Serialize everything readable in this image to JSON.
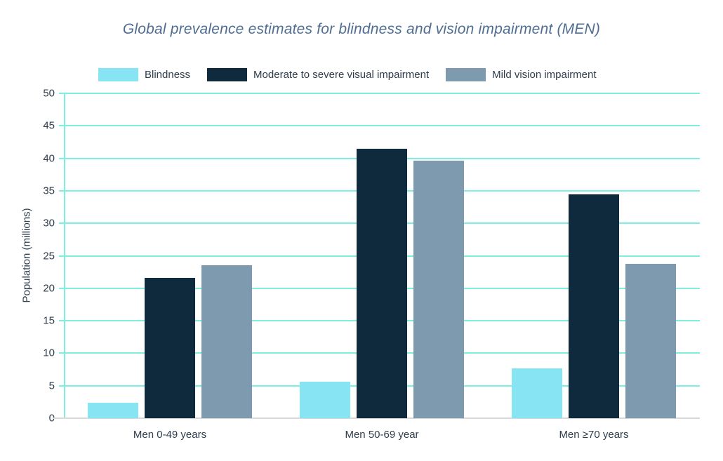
{
  "chart_data": {
    "type": "bar",
    "title": "Global prevalence estimates for blindness and vision impairment (MEN)",
    "categories": [
      "Men 0-49 years",
      "Men 50-69 year",
      "Men ≥70 years"
    ],
    "series": [
      {
        "name": "Blindness",
        "color": "#87e4f2",
        "values": [
          2.4,
          5.6,
          7.7
        ]
      },
      {
        "name": "Moderate to severe visual impairment",
        "color": "#0f2a3d",
        "values": [
          21.6,
          41.5,
          34.5
        ]
      },
      {
        "name": "Mild vision impairment",
        "color": "#7e9aae",
        "values": [
          23.5,
          39.6,
          23.8
        ]
      }
    ],
    "xlabel": "",
    "ylabel": "Population (millions)",
    "ylim": [
      0,
      50
    ],
    "ytick_step": 5,
    "grid": true,
    "legend_position": "top",
    "styles": {
      "grid_color": "#7deee0",
      "axis_line_color": "#7deee0",
      "baseline_color": "#d8d8d8",
      "title_color": "#4f6d92",
      "text_color": "#2e3d4d",
      "background": "#ffffff"
    }
  }
}
